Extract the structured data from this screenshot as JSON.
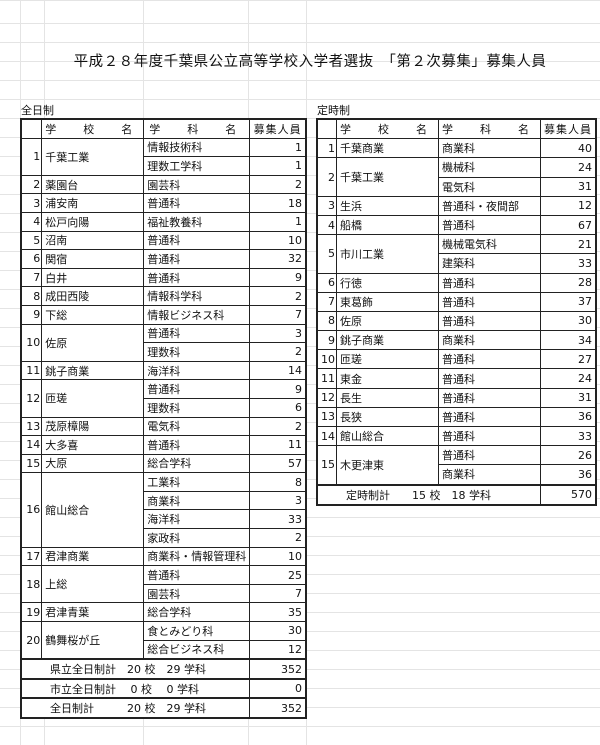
{
  "title": "平成２８年度千葉県公立高等学校入学者選抜　「第２次募集」募集人員",
  "headers": {
    "school": "学　校　名",
    "course": "学　科　名",
    "count": "募集人員"
  },
  "fulltime": {
    "label": "全日制",
    "schools": [
      {
        "no": "1",
        "name": "千葉工業",
        "courses": [
          [
            "情報技術科",
            "1"
          ],
          [
            "理数工学科",
            "1"
          ]
        ]
      },
      {
        "no": "2",
        "name": "薬園台",
        "courses": [
          [
            "園芸科",
            "2"
          ]
        ]
      },
      {
        "no": "3",
        "name": "浦安南",
        "courses": [
          [
            "普通科",
            "18"
          ]
        ]
      },
      {
        "no": "4",
        "name": "松戸向陽",
        "courses": [
          [
            "福祉教養科",
            "1"
          ]
        ]
      },
      {
        "no": "5",
        "name": "沼南",
        "courses": [
          [
            "普通科",
            "10"
          ]
        ]
      },
      {
        "no": "6",
        "name": "関宿",
        "courses": [
          [
            "普通科",
            "32"
          ]
        ]
      },
      {
        "no": "7",
        "name": "白井",
        "courses": [
          [
            "普通科",
            "9"
          ]
        ]
      },
      {
        "no": "8",
        "name": "成田西陵",
        "courses": [
          [
            "情報科学科",
            "2"
          ]
        ]
      },
      {
        "no": "9",
        "name": "下総",
        "courses": [
          [
            "情報ビジネス科",
            "7"
          ]
        ]
      },
      {
        "no": "10",
        "name": "佐原",
        "courses": [
          [
            "普通科",
            "3"
          ],
          [
            "理数科",
            "2"
          ]
        ]
      },
      {
        "no": "11",
        "name": "銚子商業",
        "courses": [
          [
            "海洋科",
            "14"
          ]
        ]
      },
      {
        "no": "12",
        "name": "匝瑳",
        "courses": [
          [
            "普通科",
            "9"
          ],
          [
            "理数科",
            "6"
          ]
        ]
      },
      {
        "no": "13",
        "name": "茂原樟陽",
        "courses": [
          [
            "電気科",
            "2"
          ]
        ]
      },
      {
        "no": "14",
        "name": "大多喜",
        "courses": [
          [
            "普通科",
            "11"
          ]
        ]
      },
      {
        "no": "15",
        "name": "大原",
        "courses": [
          [
            "総合学科",
            "57"
          ]
        ]
      },
      {
        "no": "16",
        "name": "館山総合",
        "courses": [
          [
            "工業科",
            "8"
          ],
          [
            "商業科",
            "3"
          ],
          [
            "海洋科",
            "33"
          ],
          [
            "家政科",
            "2"
          ]
        ]
      },
      {
        "no": "17",
        "name": "君津商業",
        "courses": [
          [
            "商業科・情報管理科",
            "10"
          ]
        ]
      },
      {
        "no": "18",
        "name": "上総",
        "courses": [
          [
            "普通科",
            "25"
          ],
          [
            "園芸科",
            "7"
          ]
        ]
      },
      {
        "no": "19",
        "name": "君津青葉",
        "courses": [
          [
            "総合学科",
            "35"
          ]
        ]
      },
      {
        "no": "20",
        "name": "鶴舞桜が丘",
        "courses": [
          [
            "食とみどり科",
            "30"
          ],
          [
            "総合ビジネス科",
            "12"
          ]
        ]
      }
    ],
    "totals": [
      {
        "label": "県立全日制計　20 校　29 学科",
        "count": "352"
      },
      {
        "label": "市立全日制計　 0 校　 0 学科",
        "count": "0"
      },
      {
        "label": "全日制計　　　20 校　29 学科",
        "count": "352"
      }
    ]
  },
  "parttime": {
    "label": "定時制",
    "schools": [
      {
        "no": "1",
        "name": "千葉商業",
        "courses": [
          [
            "商業科",
            "40"
          ]
        ]
      },
      {
        "no": "2",
        "name": "千葉工業",
        "courses": [
          [
            "機械科",
            "24"
          ],
          [
            "電気科",
            "31"
          ]
        ]
      },
      {
        "no": "3",
        "name": "生浜",
        "courses": [
          [
            "普通科・夜間部",
            "12"
          ]
        ]
      },
      {
        "no": "4",
        "name": "船橋",
        "courses": [
          [
            "普通科",
            "67"
          ]
        ]
      },
      {
        "no": "5",
        "name": "市川工業",
        "courses": [
          [
            "機械電気科",
            "21"
          ],
          [
            "建築科",
            "33"
          ]
        ]
      },
      {
        "no": "6",
        "name": "行徳",
        "courses": [
          [
            "普通科",
            "28"
          ]
        ]
      },
      {
        "no": "7",
        "name": "東葛飾",
        "courses": [
          [
            "普通科",
            "37"
          ]
        ]
      },
      {
        "no": "8",
        "name": "佐原",
        "courses": [
          [
            "普通科",
            "30"
          ]
        ]
      },
      {
        "no": "9",
        "name": "銚子商業",
        "courses": [
          [
            "商業科",
            "34"
          ]
        ]
      },
      {
        "no": "10",
        "name": "匝瑳",
        "courses": [
          [
            "普通科",
            "27"
          ]
        ]
      },
      {
        "no": "11",
        "name": "東金",
        "courses": [
          [
            "普通科",
            "24"
          ]
        ]
      },
      {
        "no": "12",
        "name": "長生",
        "courses": [
          [
            "普通科",
            "31"
          ]
        ]
      },
      {
        "no": "13",
        "name": "長狭",
        "courses": [
          [
            "普通科",
            "36"
          ]
        ]
      },
      {
        "no": "14",
        "name": "館山総合",
        "courses": [
          [
            "普通科",
            "33"
          ]
        ]
      },
      {
        "no": "15",
        "name": "木更津東",
        "courses": [
          [
            "普通科",
            "26"
          ],
          [
            "商業科",
            "36"
          ]
        ]
      }
    ],
    "totals": [
      {
        "label": "定時制計　　15 校　18 学科",
        "count": "570"
      }
    ]
  }
}
